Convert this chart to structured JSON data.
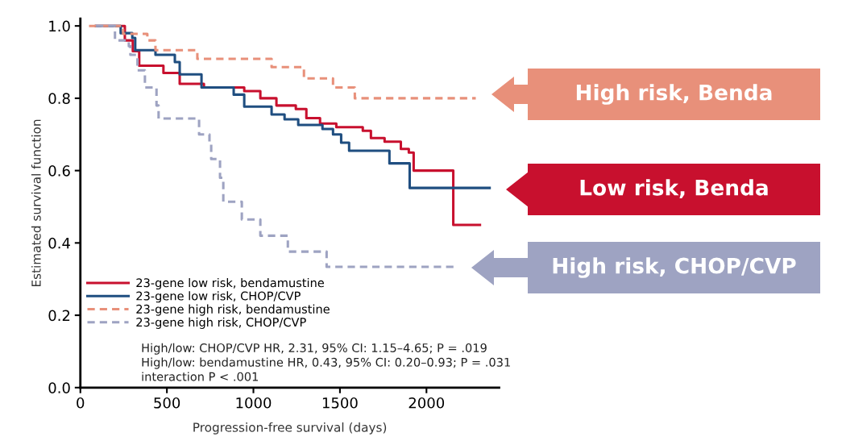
{
  "chart_data": {
    "type": "step",
    "xlabel": "Progression-free survival (days)",
    "ylabel": "Estimated survival function",
    "xlim": [
      0,
      2420
    ],
    "xticks": [
      0,
      500,
      1000,
      1500,
      2000
    ],
    "ylim": [
      0,
      1.02
    ],
    "yticks": [
      {
        "value": 0,
        "label": "0.0"
      },
      {
        "value": 0.2,
        "label": "0.2"
      },
      {
        "value": 0.4,
        "label": "0.4"
      },
      {
        "value": 0.6,
        "label": "0.6"
      },
      {
        "value": 0.8,
        "label": "0.8"
      },
      {
        "value": 1,
        "label": "1.0"
      }
    ],
    "grid": false,
    "legend": "bottom left",
    "series": [
      {
        "name": "23-gene low risk, bendamustine",
        "color": "#c8102e",
        "line_style": "solid",
        "x": [
          90,
          257,
          303,
          340,
          480,
          574,
          714,
          947,
          1040,
          1133,
          1245,
          1306,
          1385,
          1479,
          1632,
          1679,
          1758,
          1852,
          1898,
          1926,
          2155,
          2309
        ],
        "values": [
          1.0,
          0.96,
          0.93,
          0.89,
          0.87,
          0.84,
          0.83,
          0.82,
          0.8,
          0.78,
          0.77,
          0.745,
          0.73,
          0.72,
          0.71,
          0.69,
          0.68,
          0.66,
          0.65,
          0.6,
          0.45,
          0.45
        ]
      },
      {
        "name": "23-gene low risk, CHOP/CVP",
        "color": "#1f4e80",
        "line_style": "solid",
        "x": [
          90,
          233,
          300,
          317,
          434,
          546,
          574,
          700,
          886,
          947,
          1105,
          1180,
          1259,
          1399,
          1460,
          1507,
          1553,
          1786,
          1903,
          2365
        ],
        "values": [
          1.0,
          0.98,
          0.967,
          0.933,
          0.92,
          0.9,
          0.866,
          0.83,
          0.81,
          0.777,
          0.755,
          0.742,
          0.726,
          0.715,
          0.7,
          0.677,
          0.655,
          0.62,
          0.552,
          0.552
        ]
      },
      {
        "name": "23-gene high risk, bendamustine",
        "color": "#e8907a",
        "line_style": "dashed",
        "x": [
          50,
          247,
          387,
          434,
          676,
          1105,
          1292,
          1460,
          1586,
          2285
        ],
        "values": [
          1.0,
          0.978,
          0.96,
          0.933,
          0.909,
          0.886,
          0.855,
          0.83,
          0.8,
          0.8
        ]
      },
      {
        "name": "23-gene high risk, CHOP/CVP",
        "color": "#9ea3c2",
        "line_style": "dashed",
        "x": [
          90,
          200,
          280,
          289,
          330,
          373,
          440,
          452,
          686,
          746,
          756,
          807,
          826,
          933,
          1040,
          1199,
          1423,
          2169
        ],
        "values": [
          1.0,
          0.96,
          0.944,
          0.92,
          0.877,
          0.83,
          0.78,
          0.744,
          0.7,
          0.677,
          0.632,
          0.58,
          0.514,
          0.465,
          0.42,
          0.376,
          0.334,
          0.334
        ]
      }
    ],
    "annotations": [
      "High/low: CHOP/CVP HR, 2.31, 95% CI: 1.15–4.65; P = .019",
      "High/low: bendamustine HR, 0.43, 95% CI: 0.20–0.93; P = .031",
      "interaction P < .001",
      "High risk, Benda",
      "Low risk, Benda",
      "High risk, CHOP/CVP"
    ]
  }
}
